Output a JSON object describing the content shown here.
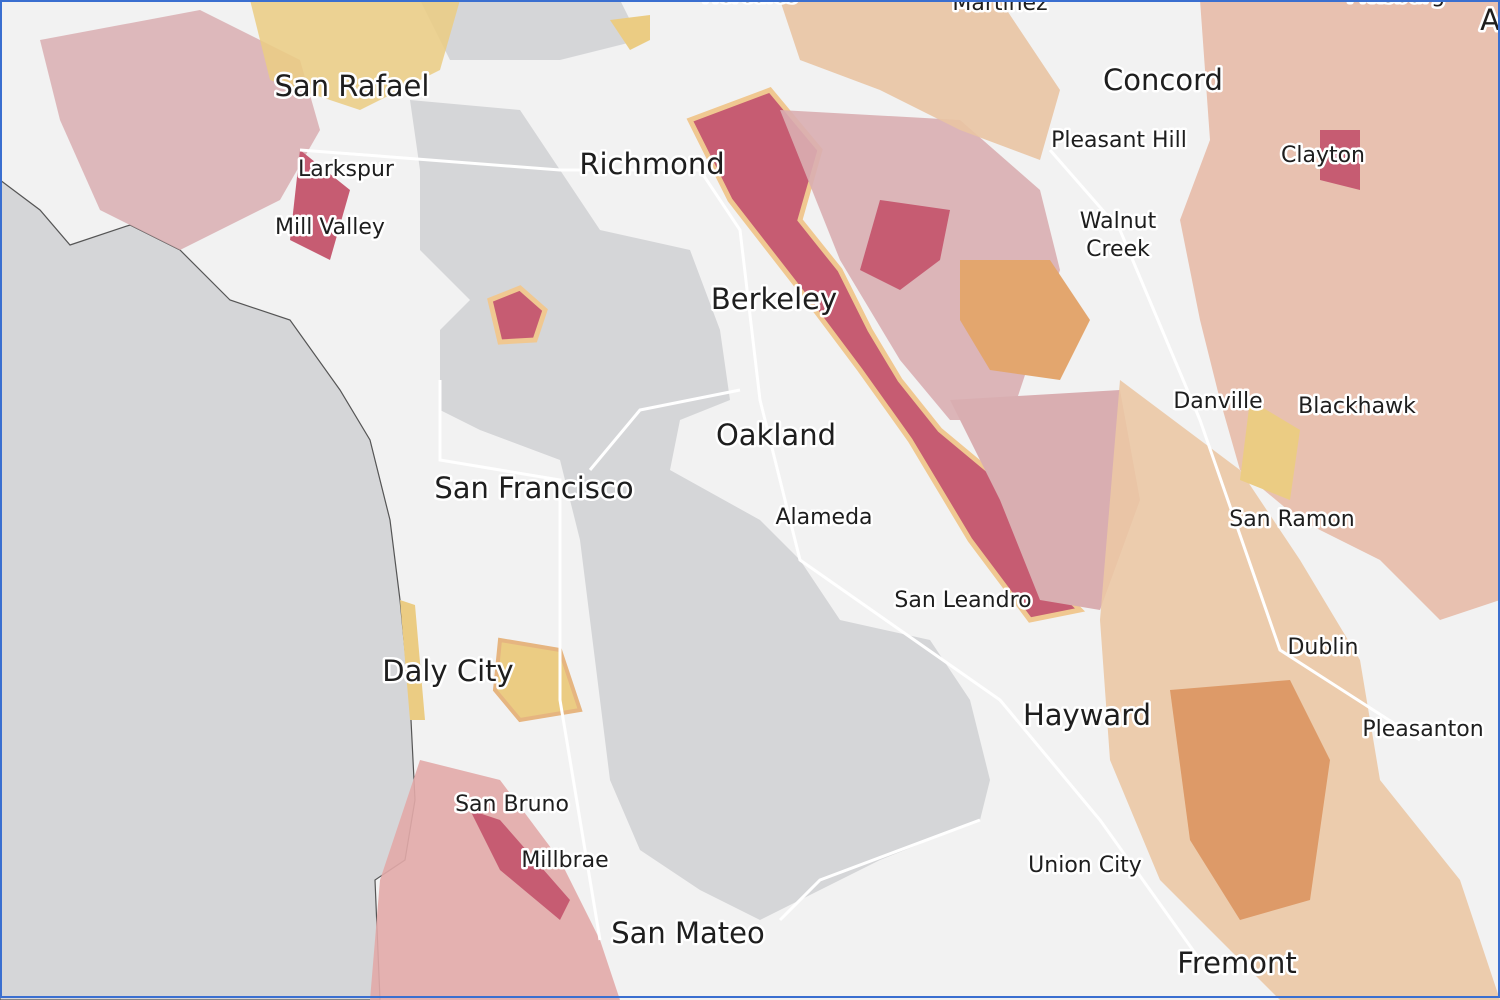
{
  "labels": [
    {
      "text": "Hercules"
    },
    {
      "text": "Martinez"
    },
    {
      "text": "Pittsburg"
    },
    {
      "text": "A"
    },
    {
      "text": "San Rafael"
    },
    {
      "text": "Larkspur"
    },
    {
      "text": "Mill Valley"
    },
    {
      "text": "Richmond"
    },
    {
      "text": "Concord"
    },
    {
      "text": "Pleasant Hill"
    },
    {
      "text": "Clayton"
    },
    {
      "lines": [
        "Walnut",
        "Creek"
      ]
    },
    {
      "text": "Berkeley"
    },
    {
      "text": "Danville"
    },
    {
      "text": "Blackhawk"
    },
    {
      "text": "Oakland"
    },
    {
      "text": "San Francisco"
    },
    {
      "text": "Alameda"
    },
    {
      "text": "San Ramon"
    },
    {
      "text": "San Leandro"
    },
    {
      "text": "Dublin"
    },
    {
      "text": "Daly City"
    },
    {
      "text": "Hayward"
    },
    {
      "text": "Pleasanton"
    },
    {
      "text": "San Bruno"
    },
    {
      "text": "Millbrae"
    },
    {
      "text": "Union City"
    },
    {
      "text": "San Mateo"
    },
    {
      "text": "Fremont"
    }
  ]
}
